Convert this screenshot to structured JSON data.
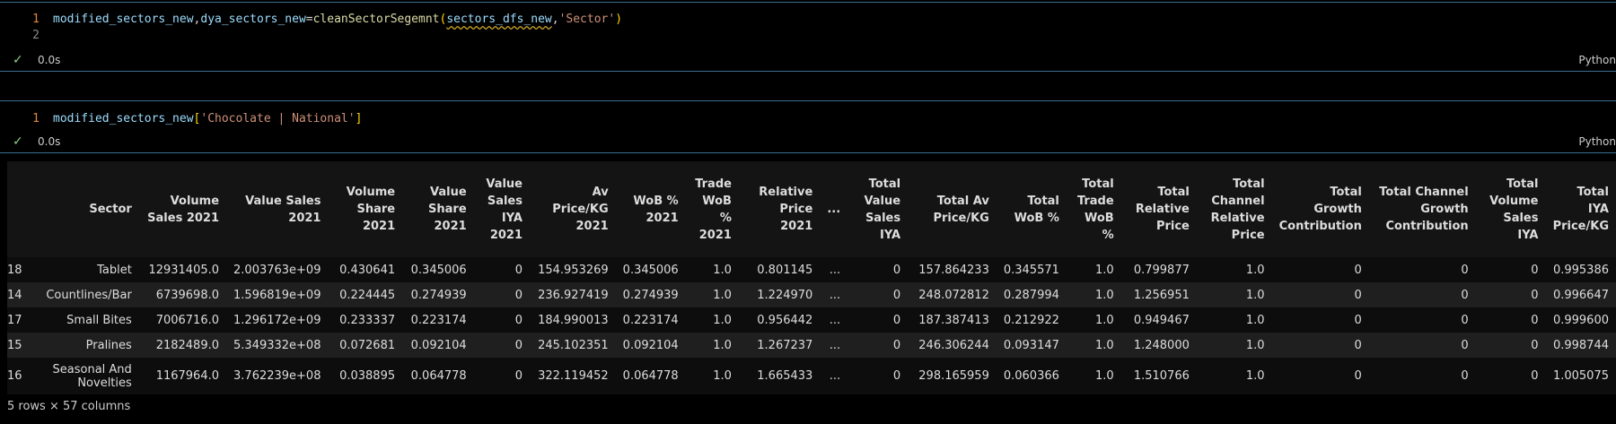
{
  "cell1": {
    "line1_num": "1",
    "line2_num": "2",
    "code": {
      "var1": "modified_sectors_new",
      "comma1": ",",
      "var2": "dya_sectors_new",
      "eq": "=",
      "func": "cleanSectorSegemnt",
      "open": "(",
      "arg1": "sectors_dfs_new",
      "comma2": ",",
      "arg2": "'Sector'",
      "close": ")"
    },
    "status_time": "0.0s",
    "language": "Python"
  },
  "cell2": {
    "line1_num": "1",
    "code": {
      "var": "modified_sectors_new",
      "open": "[",
      "key": "'Chocolate | National'",
      "close": "]"
    },
    "status_time": "0.0s",
    "language": "Python"
  },
  "table": {
    "columns": [
      "",
      "Sector",
      "Volume Sales 2021",
      "Value Sales 2021",
      "Volume Share 2021",
      "Value Share 2021",
      "Value Sales IYA 2021",
      "Av Price/KG 2021",
      "WoB % 2021",
      "Trade WoB % 2021",
      "Relative Price 2021",
      "...",
      "Total Value Sales IYA",
      "Total Av Price/KG",
      "Total WoB %",
      "Total Trade WoB %",
      "Total Relative Price",
      "Total Channel Relative Price",
      "Total Growth Contribution",
      "Total Channel Growth Contribution",
      "Total Volume Sales IYA",
      "Total IYA Price/KG"
    ],
    "rows": [
      [
        "18",
        "Tablet",
        "12931405.0",
        "2.003763e+09",
        "0.430641",
        "0.345006",
        "0",
        "154.953269",
        "0.345006",
        "1.0",
        "0.801145",
        "...",
        "0",
        "157.864233",
        "0.345571",
        "1.0",
        "0.799877",
        "1.0",
        "0",
        "0",
        "0",
        "0.995386"
      ],
      [
        "14",
        "Countlines/Bar",
        "6739698.0",
        "1.596819e+09",
        "0.224445",
        "0.274939",
        "0",
        "236.927419",
        "0.274939",
        "1.0",
        "1.224970",
        "...",
        "0",
        "248.072812",
        "0.287994",
        "1.0",
        "1.256951",
        "1.0",
        "0",
        "0",
        "0",
        "0.996647"
      ],
      [
        "17",
        "Small Bites",
        "7006716.0",
        "1.296172e+09",
        "0.233337",
        "0.223174",
        "0",
        "184.990013",
        "0.223174",
        "1.0",
        "0.956442",
        "...",
        "0",
        "187.387413",
        "0.212922",
        "1.0",
        "0.949467",
        "1.0",
        "0",
        "0",
        "0",
        "0.999600"
      ],
      [
        "15",
        "Pralines",
        "2182489.0",
        "5.349332e+08",
        "0.072681",
        "0.092104",
        "0",
        "245.102351",
        "0.092104",
        "1.0",
        "1.267237",
        "...",
        "0",
        "246.306244",
        "0.093147",
        "1.0",
        "1.248000",
        "1.0",
        "0",
        "0",
        "0",
        "0.998744"
      ],
      [
        "16",
        "Seasonal And Novelties",
        "1167964.0",
        "3.762239e+08",
        "0.038895",
        "0.064778",
        "0",
        "322.119452",
        "0.064778",
        "1.0",
        "1.665433",
        "...",
        "0",
        "298.165959",
        "0.060366",
        "1.0",
        "1.510766",
        "1.0",
        "0",
        "0",
        "0",
        "1.005075"
      ]
    ],
    "footer": "5 rows × 57 columns"
  }
}
